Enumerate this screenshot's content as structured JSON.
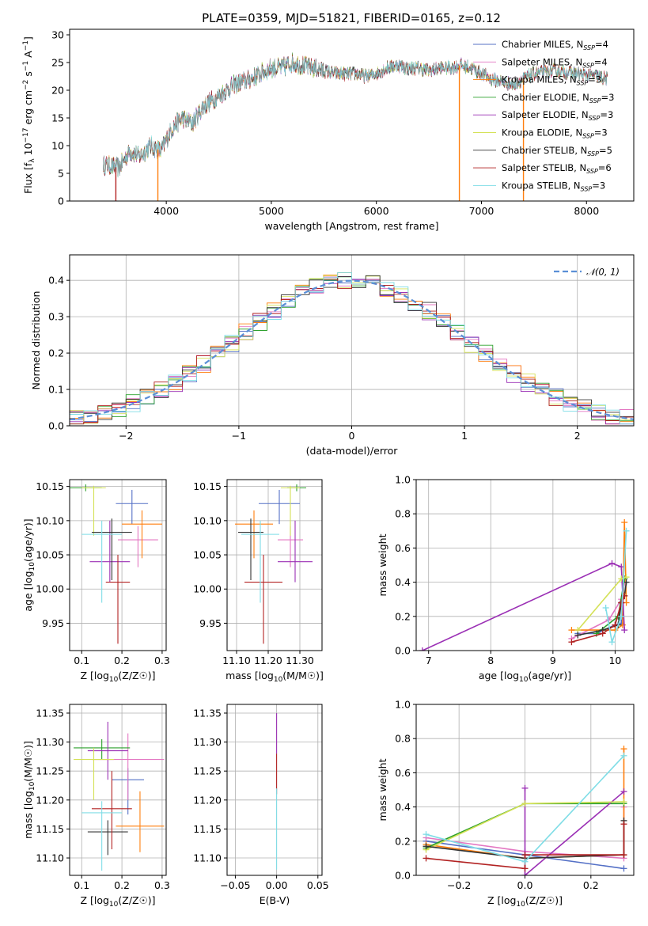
{
  "chart_data": [
    {
      "type": "line",
      "id": "spectrum",
      "title": "PLATE=0359, MJD=51821, FIBERID=0165, z=0.12",
      "xlabel": "wavelength [Angstrom, rest frame]",
      "ylabel": "Flux [f_λ 10^-17 erg cm^-2 s^-1 A^-1]",
      "xlim": [
        3080,
        8450
      ],
      "ylim": [
        0,
        31
      ],
      "xticks": [
        4000,
        5000,
        6000,
        7000,
        8000
      ],
      "yticks": [
        0,
        5,
        10,
        15,
        20,
        25,
        30
      ],
      "grid": false,
      "legend_position": "top-right",
      "legend": [
        {
          "label": "Chabrier MILES, N",
          "sub": "SSP",
          "tail": "=4",
          "color": "#5470c6"
        },
        {
          "label": "Salpeter MILES, N",
          "sub": "SSP",
          "tail": "=4",
          "color": "#e377c2"
        },
        {
          "label": "Kroupa MILES, N",
          "sub": "SSP",
          "tail": "=3",
          "color": "#ff7f0e"
        },
        {
          "label": "Chabrier ELODIE, N",
          "sub": "SSP",
          "tail": "=3",
          "color": "#2ca02c"
        },
        {
          "label": "Salpeter ELODIE, N",
          "sub": "SSP",
          "tail": "=3",
          "color": "#9b30b5"
        },
        {
          "label": "Kroupa ELODIE, N",
          "sub": "SSP",
          "tail": "=3",
          "color": "#d4e157"
        },
        {
          "label": "Chabrier STELIB, N",
          "sub": "SSP",
          "tail": "=5",
          "color": "#333333"
        },
        {
          "label": "Salpeter STELIB, N",
          "sub": "SSP",
          "tail": "=6",
          "color": "#b22222"
        },
        {
          "label": "Kroupa STELIB, N",
          "sub": "SSP",
          "tail": "=3",
          "color": "#7fdde6"
        }
      ],
      "continuum": [
        [
          3400,
          6.5
        ],
        [
          3550,
          6
        ],
        [
          3650,
          9
        ],
        [
          3750,
          8
        ],
        [
          3850,
          10
        ],
        [
          3950,
          9
        ],
        [
          4050,
          13
        ],
        [
          4150,
          15
        ],
        [
          4250,
          14
        ],
        [
          4350,
          17
        ],
        [
          4500,
          19
        ],
        [
          4650,
          21
        ],
        [
          4800,
          22
        ],
        [
          4900,
          23
        ],
        [
          5000,
          24
        ],
        [
          5100,
          24
        ],
        [
          5200,
          25
        ],
        [
          5300,
          24.5
        ],
        [
          5400,
          24
        ],
        [
          5500,
          23.5
        ],
        [
          5600,
          23
        ],
        [
          5700,
          23
        ],
        [
          5800,
          23
        ],
        [
          5900,
          22.5
        ],
        [
          6000,
          23
        ],
        [
          6100,
          24
        ],
        [
          6200,
          24.5
        ],
        [
          6300,
          24
        ],
        [
          6400,
          24
        ],
        [
          6500,
          23.5
        ],
        [
          6600,
          24
        ],
        [
          6700,
          24
        ],
        [
          6800,
          24.5
        ],
        [
          6900,
          24
        ],
        [
          7000,
          23
        ],
        [
          7100,
          22
        ],
        [
          7200,
          21.5
        ],
        [
          7300,
          21
        ],
        [
          7400,
          22
        ],
        [
          7500,
          23
        ],
        [
          7700,
          23.5
        ],
        [
          7900,
          23
        ],
        [
          8100,
          22.5
        ],
        [
          8200,
          22
        ]
      ],
      "model_dropouts": [
        [
          3520,
          "#b22222"
        ],
        [
          3920,
          "#ff7f0e"
        ],
        [
          6790,
          "#ff7f0e"
        ],
        [
          7400,
          "#ff7f0e"
        ]
      ]
    },
    {
      "type": "line",
      "id": "residuals",
      "xlabel": "(data-model)/error",
      "ylabel": "Normed distribution",
      "xlim": [
        -2.5,
        2.5
      ],
      "ylim": [
        0,
        0.47
      ],
      "xticks": [
        -2,
        -1,
        0,
        1,
        2
      ],
      "yticks": [
        0.0,
        0.1,
        0.2,
        0.3,
        0.4
      ],
      "grid": true,
      "legend": [
        {
          "label": "N(0,1)",
          "color": "#5b8fd6"
        }
      ],
      "legend_position": "top-right"
    },
    {
      "type": "scatter",
      "id": "age-vs-Z",
      "xlabel": "Z [log10(Z/Z☉)]",
      "ylabel": "age [log10(age/yr)]",
      "xlim": [
        0.07,
        0.31
      ],
      "ylim": [
        9.91,
        10.16
      ],
      "xticks": [
        0.1,
        0.2,
        0.3
      ],
      "yticks": [
        9.95,
        10.0,
        10.05,
        10.1,
        10.15
      ],
      "grid": true,
      "points": [
        {
          "x": 0.225,
          "y": 10.125,
          "xerr": 0.04,
          "yerr": [
            0.03,
            0.02
          ],
          "color": "#5470c6"
        },
        {
          "x": 0.24,
          "y": 10.072,
          "xerr": 0.05,
          "yerr": [
            0.04,
            0.02
          ],
          "color": "#e377c2"
        },
        {
          "x": 0.25,
          "y": 10.095,
          "xerr": 0.05,
          "yerr": [
            0.05,
            0.02
          ],
          "color": "#ff7f0e"
        },
        {
          "x": 0.11,
          "y": 10.148,
          "xerr": 0.04,
          "yerr": [
            0.005,
            0.005
          ],
          "color": "#2ca02c"
        },
        {
          "x": 0.17,
          "y": 10.04,
          "xerr": 0.05,
          "yerr": [
            0.03,
            0.06
          ],
          "color": "#9b30b5"
        },
        {
          "x": 0.13,
          "y": 10.148,
          "xerr": 0.03,
          "yerr": [
            0.07,
            0.003
          ],
          "color": "#d4e157"
        },
        {
          "x": 0.175,
          "y": 10.083,
          "xerr": 0.05,
          "yerr": [
            0.07,
            0.02
          ],
          "color": "#333333"
        },
        {
          "x": 0.19,
          "y": 10.01,
          "xerr": 0.03,
          "yerr": [
            0.09,
            0.04
          ],
          "color": "#b22222"
        },
        {
          "x": 0.15,
          "y": 10.08,
          "xerr": 0.05,
          "yerr": [
            0.1,
            0.02
          ],
          "color": "#7fdde6"
        }
      ]
    },
    {
      "type": "scatter",
      "id": "age-vs-mass",
      "xlabel": "mass [log10(M/M☉)]",
      "ylabel": "",
      "xlim": [
        11.07,
        11.37
      ],
      "ylim": [
        9.91,
        10.16
      ],
      "xticks": [
        11.1,
        11.2,
        11.3
      ],
      "yticks": [
        9.95,
        10.0,
        10.05,
        10.1,
        10.15
      ],
      "grid": true,
      "points": [
        {
          "x": 11.235,
          "y": 10.125,
          "xerr": 0.065,
          "yerr": [
            0.03,
            0.02
          ],
          "color": "#5470c6"
        },
        {
          "x": 11.27,
          "y": 10.072,
          "xerr": 0.04,
          "yerr": [
            0.04,
            0.02
          ],
          "color": "#e377c2"
        },
        {
          "x": 11.155,
          "y": 10.095,
          "xerr": 0.06,
          "yerr": [
            0.05,
            0.02
          ],
          "color": "#ff7f0e"
        },
        {
          "x": 11.29,
          "y": 10.148,
          "xerr": 0.03,
          "yerr": [
            0.005,
            0.005
          ],
          "color": "#2ca02c"
        },
        {
          "x": 11.285,
          "y": 10.04,
          "xerr": 0.055,
          "yerr": [
            0.03,
            0.06
          ],
          "color": "#9b30b5"
        },
        {
          "x": 11.27,
          "y": 10.148,
          "xerr": 0.03,
          "yerr": [
            0.07,
            0.003
          ],
          "color": "#d4e157"
        },
        {
          "x": 11.145,
          "y": 10.083,
          "xerr": 0.04,
          "yerr": [
            0.07,
            0.02
          ],
          "color": "#333333"
        },
        {
          "x": 11.185,
          "y": 10.01,
          "xerr": 0.06,
          "yerr": [
            0.09,
            0.04
          ],
          "color": "#b22222"
        },
        {
          "x": 11.175,
          "y": 10.08,
          "xerr": 0.06,
          "yerr": [
            0.1,
            0.02
          ],
          "color": "#7fdde6"
        }
      ]
    },
    {
      "type": "line",
      "id": "weight-vs-age",
      "xlabel": "age [log10(age/yr)]",
      "ylabel": "mass weight",
      "xlim": [
        6.8,
        10.3
      ],
      "ylim": [
        0,
        1.0
      ],
      "xticks": [
        7,
        8,
        9,
        10
      ],
      "yticks": [
        0.0,
        0.2,
        0.4,
        0.6,
        0.8,
        1.0
      ],
      "grid": true,
      "series": [
        {
          "color": "#5470c6",
          "x": [
            9.4,
            9.7,
            10.0,
            10.1,
            10.15
          ],
          "y": [
            0.1,
            0.1,
            0.15,
            0.16,
            0.42
          ]
        },
        {
          "color": "#e377c2",
          "x": [
            9.3,
            9.9,
            10.1,
            10.15
          ],
          "y": [
            0.07,
            0.18,
            0.3,
            0.4
          ]
        },
        {
          "color": "#ff7f0e",
          "x": [
            9.3,
            10.0,
            10.12,
            10.15,
            10.18
          ],
          "y": [
            0.12,
            0.12,
            0.15,
            0.75,
            0.28
          ]
        },
        {
          "color": "#2ca02c",
          "x": [
            9.7,
            10.05,
            10.15
          ],
          "y": [
            0.1,
            0.2,
            0.42
          ]
        },
        {
          "color": "#9b30b5",
          "x": [
            6.9,
            9.95,
            10.1,
            10.15
          ],
          "y": [
            0.0,
            0.51,
            0.49,
            0.12
          ]
        },
        {
          "color": "#d4e157",
          "x": [
            9.4,
            10.1,
            10.18
          ],
          "y": [
            0.12,
            0.42,
            0.43
          ]
        },
        {
          "color": "#333333",
          "x": [
            9.4,
            9.8,
            10.05,
            10.1,
            10.15,
            10.18
          ],
          "y": [
            0.09,
            0.12,
            0.15,
            0.28,
            0.32,
            0.4
          ]
        },
        {
          "color": "#b22222",
          "x": [
            9.3,
            9.8,
            10.0,
            10.1,
            10.15
          ],
          "y": [
            0.05,
            0.1,
            0.15,
            0.28,
            0.32
          ]
        },
        {
          "color": "#7fdde6",
          "x": [
            9.85,
            9.95,
            10.1,
            10.18
          ],
          "y": [
            0.25,
            0.05,
            0.2,
            0.7
          ]
        }
      ]
    },
    {
      "type": "scatter",
      "id": "mass-vs-Z",
      "xlabel": "Z [log10(Z/Z☉)]",
      "ylabel": "mass [log10(M/M☉)]",
      "xlim": [
        0.07,
        0.31
      ],
      "ylim": [
        11.07,
        11.365
      ],
      "xticks": [
        0.1,
        0.2,
        0.3
      ],
      "yticks": [
        11.1,
        11.15,
        11.2,
        11.25,
        11.3,
        11.35
      ],
      "grid": true,
      "points": [
        {
          "x": 0.215,
          "y": 11.235,
          "xerr": 0.04,
          "yerr": [
            0.06,
            0.02
          ],
          "color": "#5470c6"
        },
        {
          "x": 0.215,
          "y": 11.27,
          "xerr": 0.09,
          "yerr": [
            0.07,
            0.045
          ],
          "color": "#e377c2"
        },
        {
          "x": 0.245,
          "y": 11.155,
          "xerr": 0.06,
          "yerr": [
            0.045,
            0.06
          ],
          "color": "#ff7f0e"
        },
        {
          "x": 0.15,
          "y": 11.29,
          "xerr": 0.07,
          "yerr": [
            0.02,
            0.015
          ],
          "color": "#2ca02c"
        },
        {
          "x": 0.165,
          "y": 11.285,
          "xerr": 0.05,
          "yerr": [
            0.05,
            0.05
          ],
          "color": "#9b30b5"
        },
        {
          "x": 0.13,
          "y": 11.27,
          "xerr": 0.05,
          "yerr": [
            0.07,
            0.02
          ],
          "color": "#d4e157"
        },
        {
          "x": 0.165,
          "y": 11.145,
          "xerr": 0.05,
          "yerr": [
            0.04,
            0.02
          ],
          "color": "#333333"
        },
        {
          "x": 0.175,
          "y": 11.185,
          "xerr": 0.05,
          "yerr": [
            0.07,
            0.065
          ],
          "color": "#b22222"
        },
        {
          "x": 0.15,
          "y": 11.178,
          "xerr": 0.05,
          "yerr": [
            0.1,
            0.02
          ],
          "color": "#7fdde6"
        }
      ]
    },
    {
      "type": "scatter",
      "id": "mass-vs-EBV",
      "xlabel": "E(B-V)",
      "ylabel": "",
      "xlim": [
        -0.06,
        0.055
      ],
      "ylim": [
        11.07,
        11.365
      ],
      "xticks": [
        -0.05,
        0.0,
        0.05
      ],
      "yticks": [
        11.1,
        11.15,
        11.2,
        11.25,
        11.3,
        11.35
      ],
      "grid": true,
      "points": [
        {
          "x": 0.0,
          "y": 11.29,
          "xerr": 0.0,
          "yerr": [
            0.01,
            0.06
          ],
          "color": "#9b30b5"
        },
        {
          "x": 0.0,
          "y": 11.25,
          "xerr": 0.0,
          "yerr": [
            0.04,
            0.03
          ],
          "color": "#b22222"
        },
        {
          "x": 0.0,
          "y": 11.18,
          "xerr": 0.0,
          "yerr": [
            0.1,
            0.04
          ],
          "color": "#7fdde6"
        }
      ]
    },
    {
      "type": "line",
      "id": "weight-vs-Z",
      "xlabel": "Z [log10(Z/Z☉)]",
      "ylabel": "mass weight",
      "xlim": [
        -0.33,
        0.33
      ],
      "ylim": [
        0,
        1.0
      ],
      "xticks": [
        -0.2,
        0.0,
        0.2
      ],
      "yticks": [
        0.0,
        0.2,
        0.4,
        0.6,
        0.8,
        1.0
      ],
      "grid": true,
      "series": [
        {
          "color": "#5470c6",
          "x": [
            -0.3,
            0.0,
            0.3
          ],
          "y": [
            0.2,
            0.12,
            0.04
          ]
        },
        {
          "color": "#e377c2",
          "x": [
            -0.3,
            0.0,
            0.3,
            0.3
          ],
          "y": [
            0.22,
            0.14,
            0.1,
            0.4
          ]
        },
        {
          "color": "#ff7f0e",
          "x": [
            -0.3,
            0.0,
            0.3,
            0.3
          ],
          "y": [
            0.18,
            0.1,
            0.12,
            0.74
          ]
        },
        {
          "color": "#2ca02c",
          "x": [
            -0.3,
            0.0,
            0.3
          ],
          "y": [
            0.16,
            0.42,
            0.42
          ]
        },
        {
          "color": "#9b30b5",
          "x": [
            0.0,
            0.0,
            0.3
          ],
          "y": [
            0.51,
            0.0,
            0.49
          ]
        },
        {
          "color": "#d4e157",
          "x": [
            -0.3,
            0.0,
            0.3
          ],
          "y": [
            0.15,
            0.42,
            0.43
          ]
        },
        {
          "color": "#333333",
          "x": [
            -0.3,
            0.0,
            0.3,
            0.3
          ],
          "y": [
            0.17,
            0.1,
            0.12,
            0.32
          ]
        },
        {
          "color": "#b22222",
          "x": [
            -0.3,
            0.0,
            0.0,
            0.3,
            0.3
          ],
          "y": [
            0.1,
            0.04,
            0.12,
            0.12,
            0.3
          ]
        },
        {
          "color": "#7fdde6",
          "x": [
            -0.3,
            0.0,
            0.3
          ],
          "y": [
            0.24,
            0.08,
            0.7
          ]
        }
      ]
    }
  ]
}
